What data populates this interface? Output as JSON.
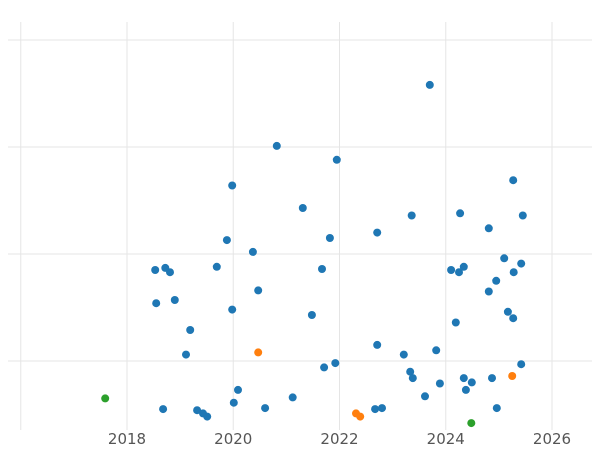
{
  "chart_data": {
    "type": "scatter",
    "title": "",
    "xlabel": "",
    "ylabel": "",
    "xlim": [
      2015.8,
      2026.9
    ],
    "ylim": [
      0.35,
      4.2
    ],
    "x_ticks": [
      "2018",
      "2020",
      "2022",
      "2024",
      "2026"
    ],
    "x_tick_values": [
      2018,
      2020,
      2022,
      2024,
      2026
    ],
    "x_gridlines": [
      2016,
      2018,
      2020,
      2022,
      2024,
      2026
    ],
    "y_gridlines": [
      1,
      2,
      3,
      4
    ],
    "y_tick_labels_visible": false,
    "grid": true,
    "grid_color": "#e5e5e5",
    "tick_label_color": "#555555",
    "background_color": "#ffffff",
    "marker_size": 4,
    "legend": "none",
    "series": [
      {
        "name": "series-blue",
        "color": "#1f77b4",
        "points": [
          [
            2023.7,
            3.58
          ],
          [
            2020.82,
            3.01
          ],
          [
            2021.95,
            2.88
          ],
          [
            2025.27,
            2.69
          ],
          [
            2019.98,
            2.64
          ],
          [
            2021.31,
            2.43
          ],
          [
            2023.36,
            2.36
          ],
          [
            2024.27,
            2.38
          ],
          [
            2025.45,
            2.36
          ],
          [
            2024.81,
            2.24
          ],
          [
            2022.71,
            2.2
          ],
          [
            2021.82,
            2.15
          ],
          [
            2019.88,
            2.13
          ],
          [
            2020.37,
            2.02
          ],
          [
            2019.69,
            1.88
          ],
          [
            2018.53,
            1.85
          ],
          [
            2018.72,
            1.87
          ],
          [
            2018.81,
            1.83
          ],
          [
            2024.1,
            1.85
          ],
          [
            2024.25,
            1.83
          ],
          [
            2024.34,
            1.88
          ],
          [
            2025.42,
            1.91
          ],
          [
            2025.28,
            1.83
          ],
          [
            2025.1,
            1.96
          ],
          [
            2021.67,
            1.86
          ],
          [
            2024.95,
            1.75
          ],
          [
            2024.81,
            1.65
          ],
          [
            2020.47,
            1.66
          ],
          [
            2018.55,
            1.54
          ],
          [
            2018.9,
            1.57
          ],
          [
            2019.98,
            1.48
          ],
          [
            2021.48,
            1.43
          ],
          [
            2024.19,
            1.36
          ],
          [
            2025.17,
            1.46
          ],
          [
            2025.27,
            1.4
          ],
          [
            2019.19,
            1.29
          ],
          [
            2022.71,
            1.15
          ],
          [
            2019.11,
            1.06
          ],
          [
            2023.82,
            1.1
          ],
          [
            2023.21,
            1.06
          ],
          [
            2021.71,
            0.94
          ],
          [
            2021.92,
            0.98
          ],
          [
            2023.33,
            0.9
          ],
          [
            2025.42,
            0.97
          ],
          [
            2023.38,
            0.84
          ],
          [
            2023.89,
            0.79
          ],
          [
            2024.34,
            0.84
          ],
          [
            2024.49,
            0.8
          ],
          [
            2024.87,
            0.84
          ],
          [
            2020.09,
            0.73
          ],
          [
            2021.12,
            0.66
          ],
          [
            2023.61,
            0.67
          ],
          [
            2024.38,
            0.73
          ],
          [
            2020.01,
            0.61
          ],
          [
            2018.68,
            0.55
          ],
          [
            2019.32,
            0.54
          ],
          [
            2019.43,
            0.51
          ],
          [
            2019.51,
            0.48
          ],
          [
            2020.6,
            0.56
          ],
          [
            2022.67,
            0.55
          ],
          [
            2022.8,
            0.56
          ],
          [
            2024.96,
            0.56
          ]
        ]
      },
      {
        "name": "series-orange",
        "color": "#ff7f0e",
        "points": [
          [
            2020.47,
            1.08
          ],
          [
            2025.25,
            0.86
          ],
          [
            2022.31,
            0.51
          ],
          [
            2022.39,
            0.48
          ]
        ]
      },
      {
        "name": "series-green",
        "color": "#2ca02c",
        "points": [
          [
            2017.59,
            0.65
          ],
          [
            2024.48,
            0.42
          ]
        ]
      }
    ]
  }
}
